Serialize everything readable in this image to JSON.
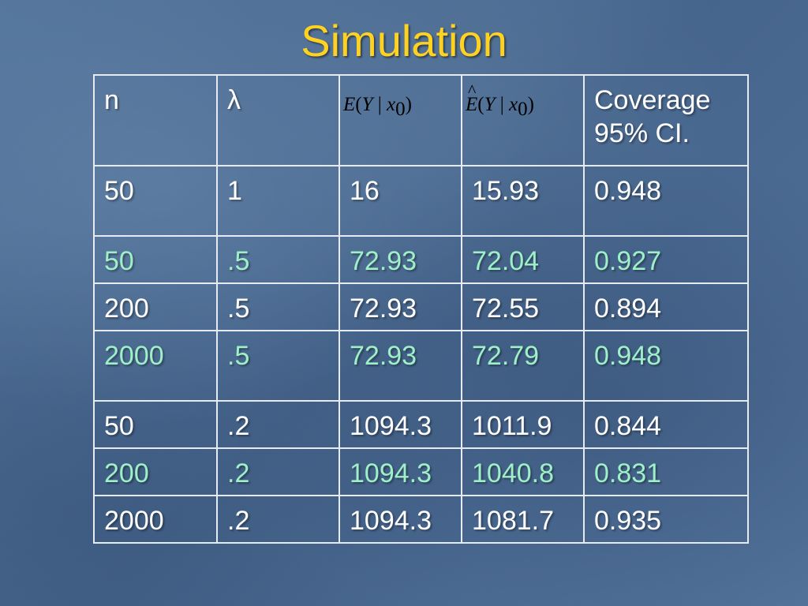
{
  "slide": {
    "title": "Simulation"
  },
  "table": {
    "headers": {
      "n": "n",
      "lambda": "λ",
      "expectation": {
        "E": "E",
        "open": "(",
        "Y": "Y",
        "bar": " | ",
        "x": "x",
        "sub": "0",
        "close": ")"
      },
      "estimate": {
        "hat": "^",
        "E": "E",
        "open": "(",
        "Y": "Y",
        "bar": " | ",
        "x": "x",
        "sub": "0",
        "close": ")"
      },
      "coverage_line1": "Coverage",
      "coverage_line2": "95% CI."
    },
    "rows": [
      {
        "n": "50",
        "lambda": "1",
        "e": "16",
        "ehat": "15.93",
        "coverage": "0.948"
      },
      {
        "n": "50",
        "lambda": ".5",
        "e": "72.93",
        "ehat": "72.04",
        "coverage": "0.927"
      },
      {
        "n": "200",
        "lambda": ".5",
        "e": "72.93",
        "ehat": "72.55",
        "coverage": "0.894"
      },
      {
        "n": "2000",
        "lambda": ".5",
        "e": "72.93",
        "ehat": "72.79",
        "coverage": "0.948"
      },
      {
        "n": "50",
        "lambda": ".2",
        "e": "1094.3",
        "ehat": "1011.9",
        "coverage": "0.844"
      },
      {
        "n": "200",
        "lambda": ".2",
        "e": "1094.3",
        "ehat": "1040.8",
        "coverage": "0.831"
      },
      {
        "n": "2000",
        "lambda": ".2",
        "e": "1094.3",
        "ehat": "1081.7",
        "coverage": "0.935"
      }
    ]
  },
  "colors": {
    "title": "#ffd21f",
    "text": "#ffffff",
    "highlight": "#9ef0c8",
    "border": "#e6ebf2",
    "background": "#4a6b93"
  }
}
